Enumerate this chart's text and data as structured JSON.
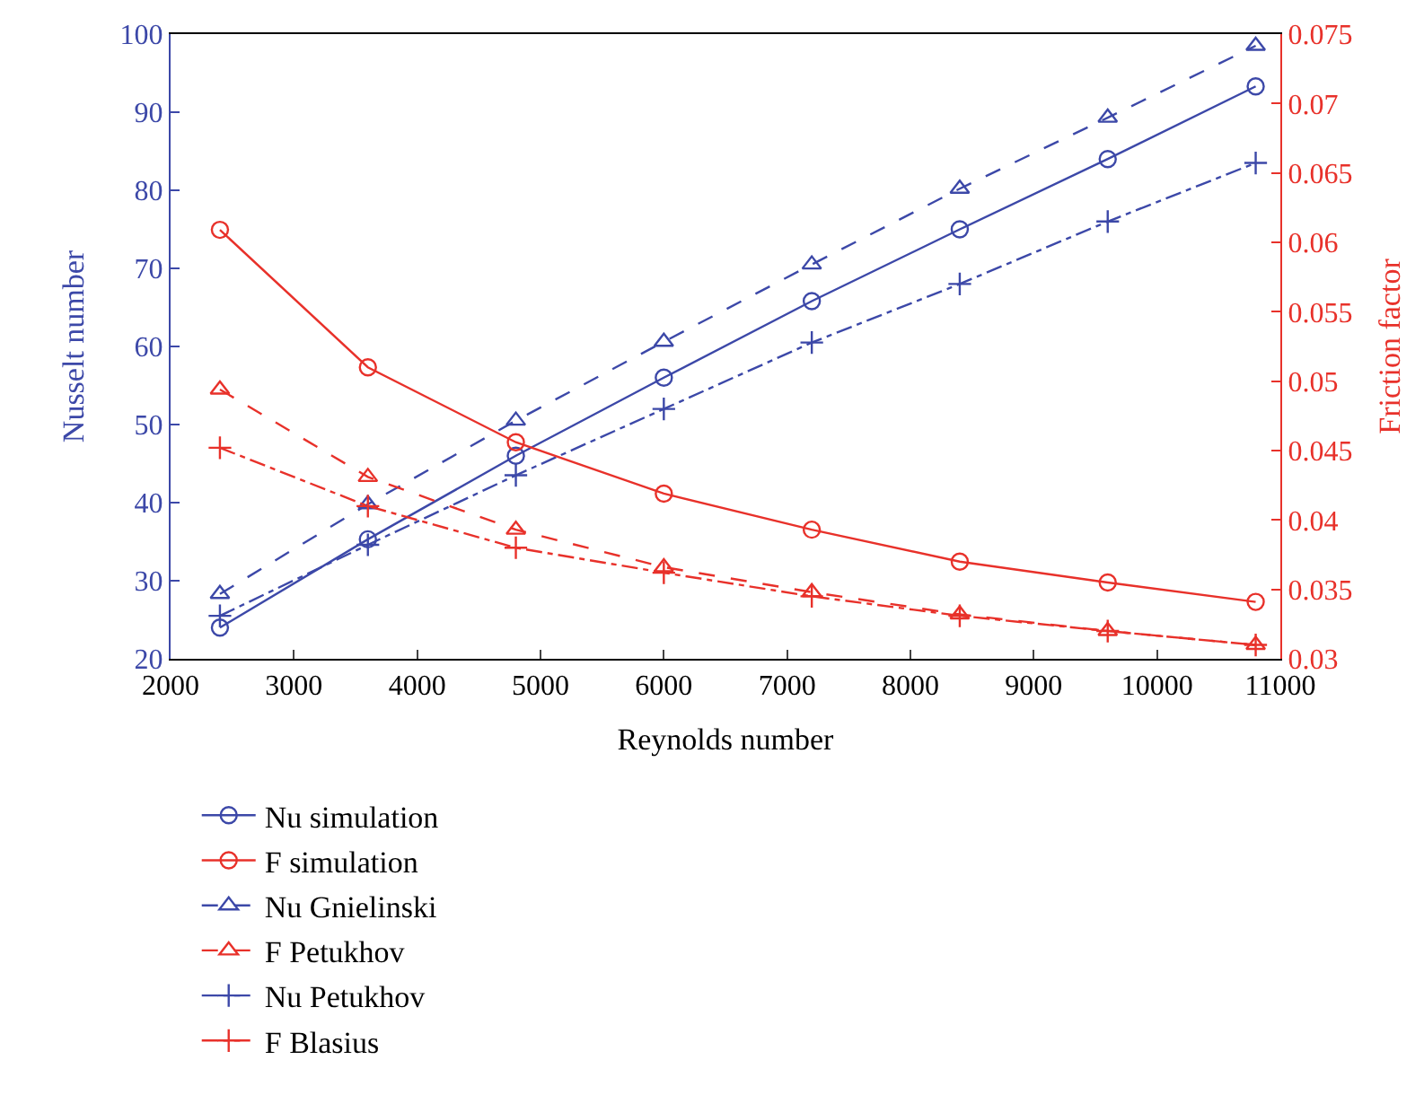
{
  "chart_data": {
    "type": "line",
    "xlabel": "Reynolds number",
    "ylabel": "Nusselt number",
    "y2label": "Friction factor",
    "x": [
      2400,
      3600,
      4800,
      6000,
      7200,
      8400,
      9600,
      10800
    ],
    "xlim": [
      2000,
      11000
    ],
    "xticks": [
      2000,
      3000,
      4000,
      5000,
      6000,
      7000,
      8000,
      9000,
      10000,
      11000
    ],
    "ylim": [
      20,
      100
    ],
    "yticks": [
      20,
      30,
      40,
      50,
      60,
      70,
      80,
      90,
      100
    ],
    "y2lim": [
      0.03,
      0.075
    ],
    "y2ticks": [
      0.03,
      0.035,
      0.04,
      0.045,
      0.05,
      0.055,
      0.06,
      0.065,
      0.07,
      0.075
    ],
    "legend": "bottom",
    "series": [
      {
        "name": "Nu simulation",
        "color": "#3c48a8",
        "marker": "circle",
        "line_style": "solid",
        "values": [
          24,
          35.3,
          46,
          56,
          65.8,
          75,
          84,
          93.3
        ]
      },
      {
        "name": "Nu Gnielinski",
        "color": "#3c48a8",
        "marker": "triangle",
        "line_style": "dashed",
        "values": [
          28.3,
          39.8,
          50.5,
          60.6,
          70.5,
          80.2,
          89.3,
          98.5
        ]
      },
      {
        "name": "Nu Petukhov",
        "color": "#3c48a8",
        "marker": "cross",
        "line_style": "dashdot",
        "values": [
          25.5,
          34.6,
          43.5,
          52,
          60.5,
          68,
          76,
          83.5
        ]
      },
      {
        "name": "F simulation",
        "color": "#e8312a",
        "marker": "circle",
        "line_style": "solid",
        "axis": "y2",
        "values": [
          0.0609,
          0.051,
          0.0456,
          0.0419,
          0.0393,
          0.037,
          0.0355,
          0.0341
        ]
      },
      {
        "name": "F Petukhov",
        "color": "#e8312a",
        "marker": "triangle",
        "line_style": "dashed",
        "axis": "y2",
        "values": [
          0.0494,
          0.0431,
          0.0393,
          0.0366,
          0.0348,
          0.0332,
          0.032,
          0.031
        ]
      },
      {
        "name": "F Blasius",
        "color": "#e8312a",
        "marker": "cross",
        "line_style": "dashdot",
        "axis": "y2",
        "values": [
          0.0452,
          0.041,
          0.038,
          0.0362,
          0.0345,
          0.0331,
          0.032,
          0.031
        ]
      }
    ]
  }
}
